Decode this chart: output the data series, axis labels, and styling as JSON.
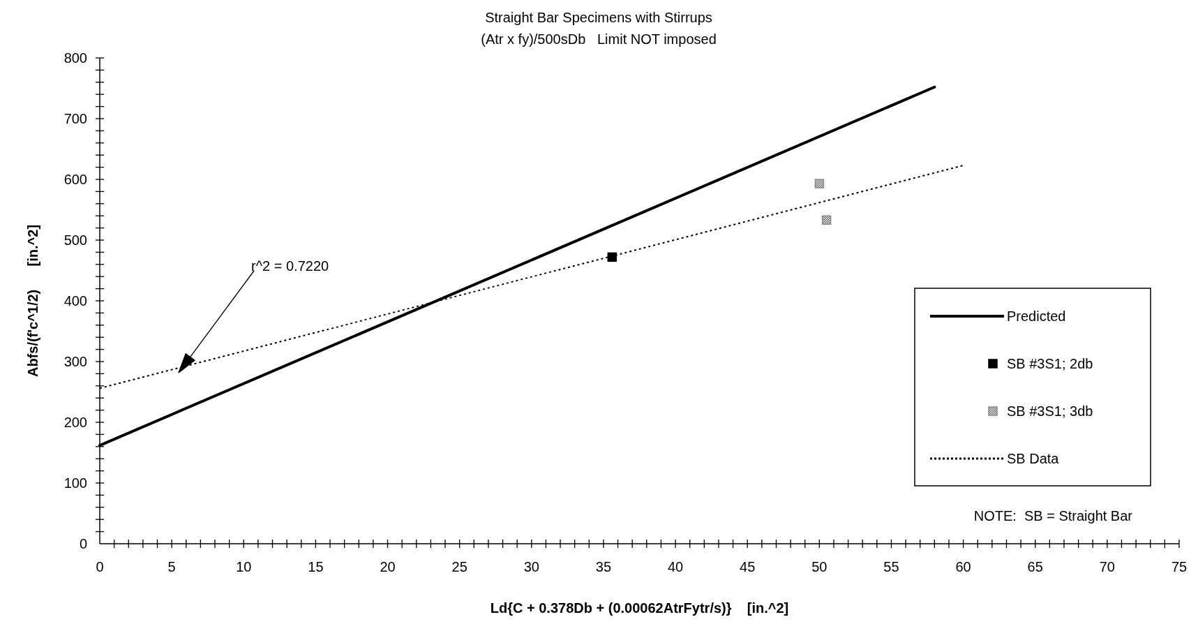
{
  "chart_data": {
    "type": "scatter",
    "title": "Straight Bar Specimens with Stirrups",
    "subtitle": "(Atr x fy)/500sDb   Limit NOT imposed",
    "xlabel": "Ld{C + 0.378Db + (0.00062AtrFytr/s)}    [in.^2]",
    "ylabel": "Abfs/(f'c^1/2)      [in.^2]",
    "xlim": [
      0,
      75
    ],
    "ylim": [
      0,
      800
    ],
    "xticks": [
      0,
      {
        "value": 1,
        "label": null
      },
      {
        "value": 2,
        "label": null
      },
      {
        "value": 3,
        "label": null
      },
      {
        "value": 4,
        "label": null
      },
      5,
      {
        "value": 6,
        "label": null
      },
      {
        "value": 7,
        "label": null
      },
      {
        "value": 8,
        "label": null
      },
      {
        "value": 9,
        "label": null
      },
      10,
      {
        "value": 11,
        "label": null
      },
      {
        "value": 12,
        "label": null
      },
      {
        "value": 13,
        "label": null
      },
      {
        "value": 14,
        "label": null
      },
      15,
      {
        "value": 16,
        "label": null
      },
      {
        "value": 17,
        "label": null
      },
      {
        "value": 18,
        "label": null
      },
      {
        "value": 19,
        "label": null
      },
      20,
      {
        "value": 21,
        "label": null
      },
      {
        "value": 22,
        "label": null
      },
      {
        "value": 23,
        "label": null
      },
      {
        "value": 24,
        "label": null
      },
      25,
      {
        "value": 26,
        "label": null
      },
      {
        "value": 27,
        "label": null
      },
      {
        "value": 28,
        "label": null
      },
      {
        "value": 29,
        "label": null
      },
      30,
      {
        "value": 31,
        "label": null
      },
      {
        "value": 32,
        "label": null
      },
      {
        "value": 33,
        "label": null
      },
      {
        "value": 34,
        "label": null
      },
      35,
      {
        "value": 36,
        "label": null
      },
      {
        "value": 37,
        "label": null
      },
      {
        "value": 38,
        "label": null
      },
      {
        "value": 39,
        "label": null
      },
      40,
      {
        "value": 41,
        "label": null
      },
      {
        "value": 42,
        "label": null
      },
      {
        "value": 43,
        "label": null
      },
      {
        "value": 44,
        "label": null
      },
      45,
      {
        "value": 46,
        "label": null
      },
      {
        "value": 47,
        "label": null
      },
      {
        "value": 48,
        "label": null
      },
      {
        "value": 49,
        "label": null
      },
      50,
      {
        "value": 51,
        "label": null
      },
      {
        "value": 52,
        "label": null
      },
      {
        "value": 53,
        "label": null
      },
      {
        "value": 54,
        "label": null
      },
      55,
      {
        "value": 56,
        "label": null
      },
      {
        "value": 57,
        "label": null
      },
      {
        "value": 58,
        "label": null
      },
      {
        "value": 59,
        "label": null
      },
      60,
      {
        "value": 61,
        "label": null
      },
      {
        "value": 62,
        "label": null
      },
      {
        "value": 63,
        "label": null
      },
      {
        "value": 64,
        "label": null
      },
      65,
      {
        "value": 66,
        "label": null
      },
      {
        "value": 67,
        "label": null
      },
      {
        "value": 68,
        "label": null
      },
      {
        "value": 69,
        "label": null
      },
      70,
      {
        "value": 71,
        "label": null
      },
      {
        "value": 72,
        "label": null
      },
      {
        "value": 73,
        "label": null
      },
      {
        "value": 74,
        "label": null
      },
      75
    ],
    "yticks": [
      0,
      {
        "value": 20,
        "label": null
      },
      {
        "value": 40,
        "label": null
      },
      {
        "value": 60,
        "label": null
      },
      {
        "value": 80,
        "label": null
      },
      100,
      {
        "value": 120,
        "label": null
      },
      {
        "value": 140,
        "label": null
      },
      {
        "value": 160,
        "label": null
      },
      {
        "value": 180,
        "label": null
      },
      200,
      {
        "value": 220,
        "label": null
      },
      {
        "value": 240,
        "label": null
      },
      {
        "value": 260,
        "label": null
      },
      {
        "value": 280,
        "label": null
      },
      300,
      {
        "value": 320,
        "label": null
      },
      {
        "value": 340,
        "label": null
      },
      {
        "value": 360,
        "label": null
      },
      {
        "value": 380,
        "label": null
      },
      400,
      {
        "value": 420,
        "label": null
      },
      {
        "value": 440,
        "label": null
      },
      {
        "value": 460,
        "label": null
      },
      {
        "value": 480,
        "label": null
      },
      500,
      {
        "value": 520,
        "label": null
      },
      {
        "value": 540,
        "label": null
      },
      {
        "value": 560,
        "label": null
      },
      {
        "value": 580,
        "label": null
      },
      600,
      {
        "value": 620,
        "label": null
      },
      {
        "value": 640,
        "label": null
      },
      {
        "value": 660,
        "label": null
      },
      {
        "value": 680,
        "label": null
      },
      700,
      {
        "value": 720,
        "label": null
      },
      {
        "value": 740,
        "label": null
      },
      {
        "value": 760,
        "label": null
      },
      {
        "value": 780,
        "label": null
      },
      800
    ],
    "series": [
      {
        "name": "Predicted",
        "type": "line",
        "color": "#000000",
        "line_style": "solid",
        "x": [
          0,
          58
        ],
        "values": [
          162,
          752
        ]
      },
      {
        "name": "SB #3S1; 2db",
        "type": "scatter",
        "color": "#000000",
        "marker": "square",
        "x": [
          35.6
        ],
        "values": [
          472
        ]
      },
      {
        "name": "SB #3S1; 3db",
        "type": "scatter",
        "color": "#8c8c8c",
        "marker": "square",
        "x": [
          50.0,
          50.5
        ],
        "values": [
          593,
          533
        ]
      },
      {
        "name": "SB Data",
        "type": "line",
        "color": "#000000",
        "line_style": "dotted",
        "x": [
          0,
          60
        ],
        "values": [
          256,
          623
        ]
      }
    ],
    "annotations": [
      "r^2 = 0.7220",
      "NOTE:  SB = Straight Bar"
    ],
    "legend": "right",
    "grid": false
  }
}
